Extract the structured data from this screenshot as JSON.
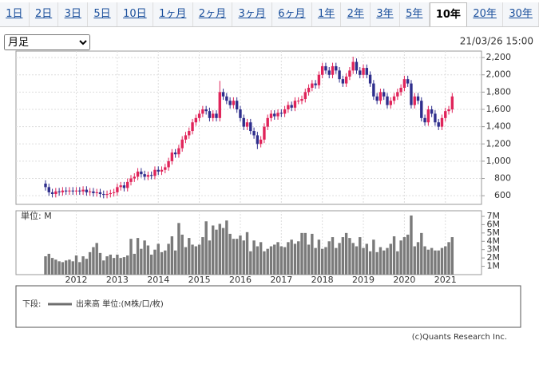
{
  "tabs": [
    "1日",
    "2日",
    "3日",
    "5日",
    "10日",
    "1ヶ月",
    "2ヶ月",
    "3ヶ月",
    "6ヶ月",
    "1年",
    "2年",
    "3年",
    "5年",
    "10年",
    "20年",
    "30年"
  ],
  "active_tab_index": 13,
  "select": "月足",
  "timestamp": "21/03/26 15:00",
  "legend": {
    "prefix": "下段:",
    "label": "出来高 単位:(M株/口/枚)",
    "color": "#6e6e6e"
  },
  "copyright": "(c)Quants Research Inc.",
  "chart_data": [
    {
      "type": "candlestick",
      "up_color": "#e0245a",
      "down_color": "#2e2e8c",
      "grid": true,
      "ylim": [
        500,
        2275
      ],
      "yticks": [
        600,
        800,
        {
          "value": 1000,
          "label": "1,000"
        },
        {
          "value": 1200,
          "label": "1,200"
        },
        {
          "value": 1400,
          "label": "1,400"
        },
        {
          "value": 1600,
          "label": "1,600"
        },
        {
          "value": 1800,
          "label": "1,800"
        },
        {
          "value": 2000,
          "label": "2,000"
        },
        {
          "value": 2200,
          "label": "2,200"
        }
      ],
      "open": [
        740,
        700,
        640,
        620,
        650,
        640,
        660,
        650,
        660,
        650,
        660,
        650,
        670,
        640,
        650,
        630,
        640,
        620,
        610,
        620,
        630,
        640,
        700,
        720,
        690,
        760,
        800,
        820,
        880,
        850,
        820,
        840,
        830,
        900,
        880,
        900,
        930,
        1000,
        1100,
        1080,
        1150,
        1250,
        1300,
        1350,
        1450,
        1500,
        1550,
        1600,
        1580,
        1500,
        1550,
        1500,
        1800,
        1750,
        1700,
        1650,
        1700,
        1600,
        1500,
        1400,
        1450,
        1350,
        1300,
        1200,
        1250,
        1400,
        1500,
        1550,
        1520,
        1560,
        1550,
        1600,
        1650,
        1620,
        1700,
        1700,
        1720,
        1800,
        1850,
        1900,
        1880,
        2000,
        2100,
        2050,
        2000,
        2100,
        2050,
        1950,
        1900,
        1980,
        2050,
        2150,
        2050,
        2000,
        2080,
        2000,
        1900,
        1750,
        1700,
        1800,
        1750,
        1650,
        1700,
        1750,
        1800,
        1850,
        1950,
        1900,
        1650,
        1750,
        1700,
        1500,
        1450,
        1600,
        1550,
        1450,
        1400,
        1500,
        1580,
        1600
      ],
      "high": [
        780,
        740,
        680,
        690,
        690,
        700,
        700,
        700,
        700,
        700,
        700,
        710,
        710,
        690,
        690,
        680,
        680,
        660,
        660,
        670,
        680,
        740,
        760,
        760,
        800,
        840,
        860,
        920,
        920,
        890,
        880,
        880,
        940,
        940,
        940,
        970,
        1040,
        1140,
        1140,
        1190,
        1290,
        1340,
        1390,
        1490,
        1540,
        1590,
        1640,
        1640,
        1620,
        1590,
        1590,
        1930,
        1840,
        1790,
        1740,
        1740,
        1740,
        1640,
        1540,
        1490,
        1490,
        1390,
        1340,
        1290,
        1440,
        1540,
        1590,
        1590,
        1600,
        1600,
        1640,
        1690,
        1690,
        1740,
        1740,
        1760,
        1840,
        1890,
        1940,
        1940,
        2040,
        2140,
        2140,
        2090,
        2140,
        2140,
        2090,
        1990,
        2020,
        2090,
        2210,
        2190,
        2090,
        2120,
        2120,
        2040,
        1940,
        1790,
        1840,
        1840,
        1790,
        1740,
        1790,
        1840,
        1890,
        1990,
        1990,
        1940,
        1790,
        1790,
        1740,
        1540,
        1640,
        1640,
        1590,
        1490,
        1540,
        1620,
        1640,
        1790
      ],
      "low": [
        660,
        600,
        580,
        580,
        600,
        600,
        610,
        610,
        610,
        610,
        610,
        610,
        600,
        600,
        590,
        590,
        580,
        570,
        570,
        580,
        590,
        600,
        660,
        650,
        650,
        720,
        760,
        780,
        810,
        780,
        780,
        790,
        790,
        840,
        840,
        860,
        890,
        960,
        1040,
        1040,
        1110,
        1210,
        1260,
        1310,
        1410,
        1460,
        1510,
        1540,
        1460,
        1460,
        1460,
        1460,
        1710,
        1660,
        1610,
        1610,
        1560,
        1460,
        1360,
        1360,
        1310,
        1260,
        1140,
        1160,
        1210,
        1360,
        1460,
        1480,
        1480,
        1510,
        1510,
        1560,
        1580,
        1580,
        1660,
        1660,
        1680,
        1760,
        1810,
        1840,
        1840,
        1960,
        2010,
        1960,
        1960,
        2010,
        1910,
        1860,
        1860,
        1940,
        2010,
        2010,
        1960,
        1960,
        1960,
        1860,
        1710,
        1660,
        1660,
        1710,
        1610,
        1610,
        1660,
        1710,
        1760,
        1810,
        1860,
        1610,
        1610,
        1660,
        1460,
        1410,
        1410,
        1510,
        1410,
        1360,
        1360,
        1460,
        1540,
        1560
      ],
      "close": [
        700,
        640,
        620,
        650,
        640,
        660,
        650,
        660,
        650,
        660,
        650,
        670,
        640,
        650,
        630,
        640,
        620,
        610,
        620,
        630,
        640,
        700,
        720,
        690,
        760,
        800,
        820,
        880,
        850,
        820,
        840,
        830,
        900,
        880,
        900,
        930,
        1000,
        1100,
        1080,
        1150,
        1250,
        1300,
        1350,
        1450,
        1500,
        1550,
        1600,
        1580,
        1500,
        1550,
        1500,
        1800,
        1750,
        1700,
        1650,
        1700,
        1600,
        1500,
        1400,
        1450,
        1350,
        1300,
        1200,
        1250,
        1400,
        1500,
        1550,
        1520,
        1560,
        1550,
        1600,
        1650,
        1620,
        1700,
        1700,
        1720,
        1800,
        1850,
        1900,
        1880,
        2000,
        2100,
        2050,
        2000,
        2100,
        2050,
        1950,
        1900,
        1980,
        2050,
        2150,
        2050,
        2000,
        2080,
        2000,
        1900,
        1750,
        1700,
        1800,
        1750,
        1650,
        1700,
        1750,
        1800,
        1850,
        1950,
        1900,
        1650,
        1750,
        1700,
        1500,
        1450,
        1600,
        1550,
        1450,
        1400,
        1500,
        1580,
        1600,
        1750
      ]
    },
    {
      "type": "bar",
      "unit_label": "単位: M",
      "color": "#7a7a7a",
      "grid": true,
      "ylim": [
        0,
        7.67
      ],
      "yticks": [
        {
          "value": 1,
          "label": "1M"
        },
        {
          "value": 2,
          "label": "2M"
        },
        {
          "value": 3,
          "label": "3M"
        },
        {
          "value": 4,
          "label": "4M"
        },
        {
          "value": 5,
          "label": "5M"
        },
        {
          "value": 6,
          "label": "6M"
        },
        {
          "value": 7,
          "label": "7M"
        }
      ],
      "xticks": [
        {
          "value": 9,
          "label": "2012"
        },
        {
          "value": 21,
          "label": "2013"
        },
        {
          "value": 33,
          "label": "2014"
        },
        {
          "value": 45,
          "label": "2015"
        },
        {
          "value": 57,
          "label": "2016"
        },
        {
          "value": 69,
          "label": "2017"
        },
        {
          "value": 81,
          "label": "2018"
        },
        {
          "value": 93,
          "label": "2019"
        },
        {
          "value": 105,
          "label": "2020"
        },
        {
          "value": 117,
          "label": "2021"
        }
      ],
      "values": [
        2.2,
        2.5,
        2.0,
        1.8,
        1.6,
        1.5,
        1.7,
        1.8,
        1.6,
        2.3,
        1.5,
        2.2,
        1.9,
        2.7,
        3.3,
        3.8,
        2.6,
        1.7,
        2.2,
        2.4,
        2.0,
        2.4,
        2.0,
        2.1,
        2.3,
        4.3,
        2.5,
        4.4,
        3.1,
        4.1,
        3.5,
        2.4,
        3.0,
        3.7,
        2.7,
        2.9,
        3.7,
        4.6,
        2.9,
        6.2,
        4.8,
        3.3,
        4.4,
        3.6,
        3.4,
        3.6,
        4.5,
        6.4,
        4.1,
        5.9,
        5.4,
        6.1,
        5.6,
        6.5,
        4.9,
        4.3,
        4.3,
        4.7,
        4.1,
        5.1,
        2.8,
        4.1,
        3.4,
        3.9,
        2.8,
        3.1,
        3.4,
        3.6,
        3.9,
        3.4,
        3.3,
        3.9,
        4.2,
        3.7,
        4.0,
        5.0,
        5.0,
        3.6,
        4.9,
        3.2,
        4.2,
        3.1,
        3.3,
        4.0,
        4.5,
        3.2,
        3.8,
        4.5,
        5.0,
        4.4,
        3.8,
        3.4,
        4.5,
        3.2,
        3.7,
        2.8,
        4.2,
        2.7,
        3.3,
        2.9,
        3.2,
        3.7,
        4.6,
        2.8,
        4.1,
        4.5,
        4.8,
        7.1,
        3.4,
        3.9,
        5.0,
        3.4,
        3.0,
        3.2,
        2.9,
        2.9,
        3.2,
        3.4,
        3.9,
        4.5
      ]
    }
  ]
}
